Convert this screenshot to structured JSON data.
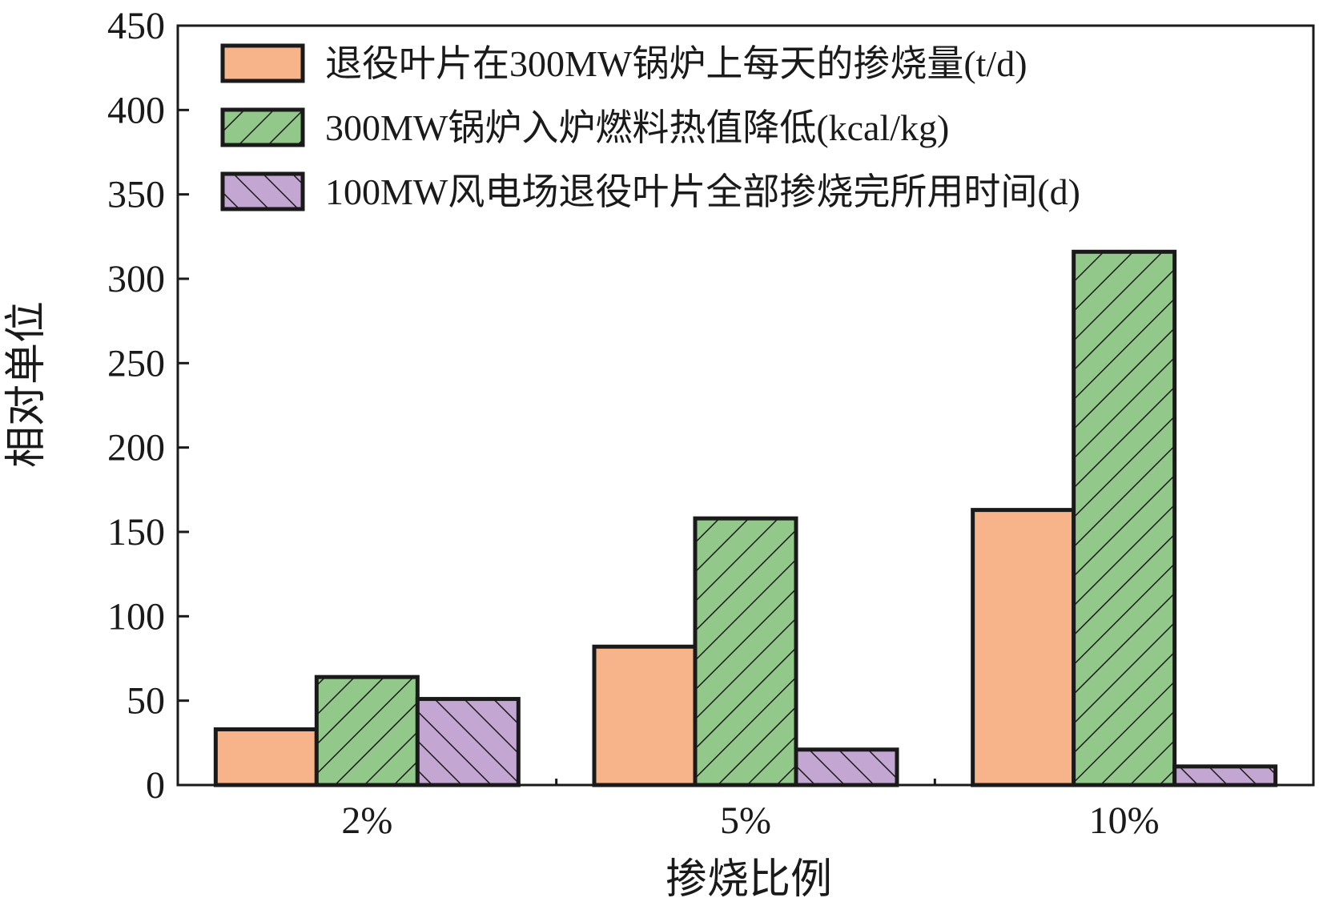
{
  "chart_data": {
    "type": "bar",
    "title": "",
    "xlabel": "掺烧比例",
    "ylabel": "相对单位",
    "categories": [
      "2%",
      "5%",
      "10%"
    ],
    "ylim": [
      0,
      450
    ],
    "yticks": [
      "0",
      "50",
      "100",
      "150",
      "200",
      "250",
      "300",
      "350",
      "400",
      "450"
    ],
    "grid": false,
    "legend_position": "top-left",
    "series": [
      {
        "name": "退役叶片在300MW锅炉上每天的掺烧量(t/d)",
        "values": [
          33,
          82,
          163
        ],
        "color": "#f7b48a",
        "pattern": "solid"
      },
      {
        "name": "300MW锅炉入炉燃料热值降低(kcal/kg)",
        "values": [
          64,
          158,
          316
        ],
        "color": "#92c98a",
        "pattern": "hatch-forward"
      },
      {
        "name": "100MW风电场退役叶片全部掺烧完所用时间(d)",
        "values": [
          51,
          21,
          11
        ],
        "color": "#c3a6d2",
        "pattern": "hatch-backward"
      }
    ]
  }
}
